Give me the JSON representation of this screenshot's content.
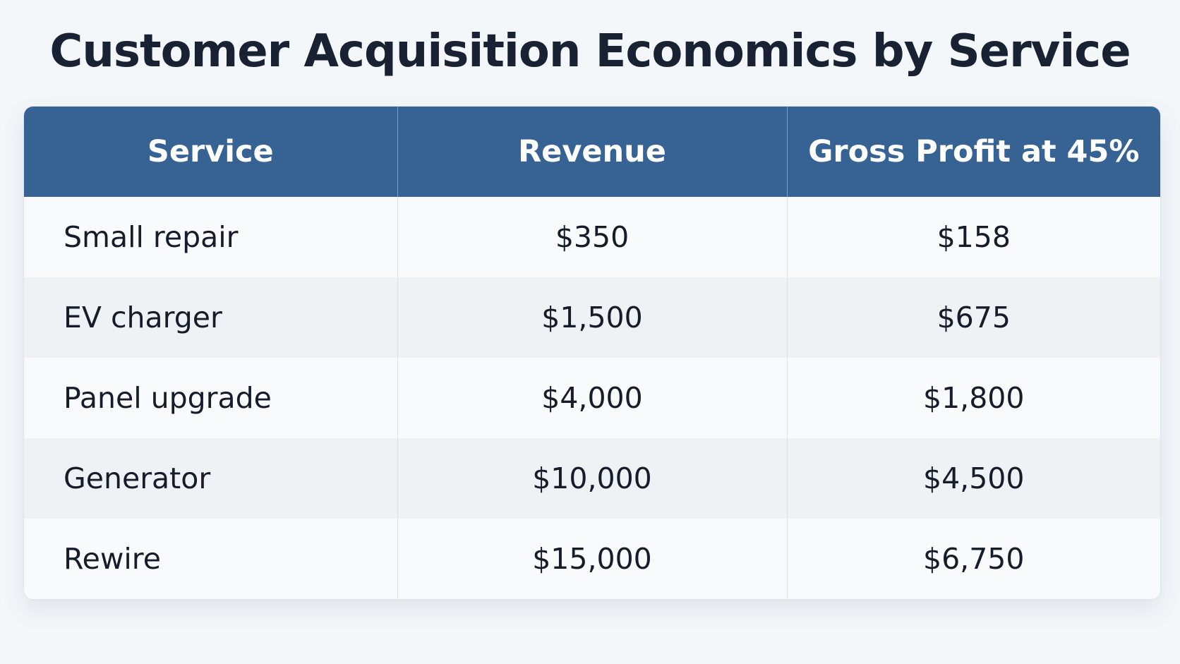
{
  "title": "Customer Acquisition Economics by Service",
  "chart_data": {
    "type": "table",
    "title": "Customer Acquisition Economics by Service",
    "columns": [
      "Service",
      "Revenue",
      "Gross Profit at 45%"
    ],
    "rows": [
      [
        "Small repair",
        "$350",
        "$158"
      ],
      [
        "EV charger",
        "$1,500",
        "$675"
      ],
      [
        "Panel upgrade",
        "$4,000",
        "$1,800"
      ],
      [
        "Generator",
        "$10,000",
        "$4,500"
      ],
      [
        "Rewire",
        "$15,000",
        "$6,750"
      ]
    ]
  },
  "colors": {
    "header_bg": "#366394",
    "header_text": "#ffffff",
    "row_odd": "#f9fafc",
    "row_even": "#eff2f5",
    "page_bg": "#f4f7fa"
  }
}
